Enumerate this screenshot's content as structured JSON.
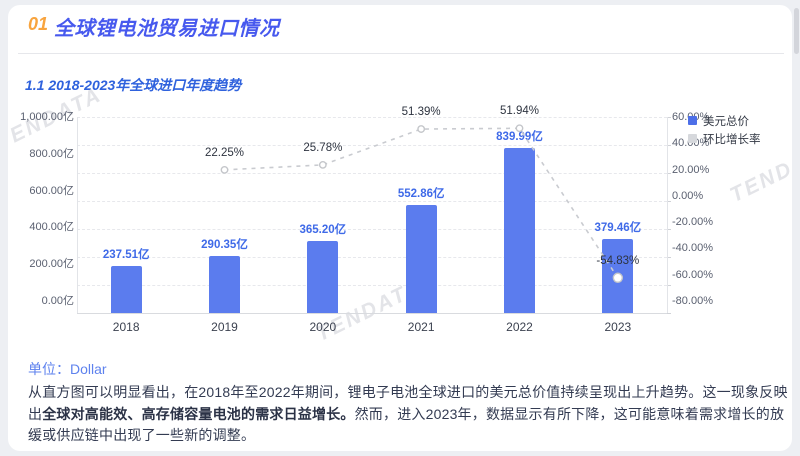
{
  "header": {
    "number": "01",
    "title": "全球锂电池贸易进口情况"
  },
  "section": {
    "subtitle": "1.1 2018-2023年全球进口年度趋势"
  },
  "watermark": {
    "text": "TENDATA"
  },
  "chart_data": {
    "type": "bar",
    "categories": [
      "2018",
      "2019",
      "2020",
      "2021",
      "2022",
      "2023"
    ],
    "series": [
      {
        "name": "美元总价",
        "type": "bar",
        "axis": "left",
        "unit": "亿",
        "color": "#5b7cee",
        "values": [
          237.51,
          290.35,
          365.2,
          552.86,
          839.99,
          379.46
        ],
        "labels": [
          "237.51亿",
          "290.35亿",
          "365.20亿",
          "552.86亿",
          "839.99亿",
          "379.46亿"
        ]
      },
      {
        "name": "环比增长率",
        "type": "line",
        "axis": "right",
        "unit": "%",
        "color": "#c9cbd0",
        "values": [
          null,
          22.25,
          25.78,
          51.39,
          51.94,
          -54.83
        ],
        "labels": [
          null,
          "22.25%",
          "25.78%",
          "51.39%",
          "51.94%",
          "-54.83%"
        ]
      }
    ],
    "left_axis": {
      "min": 0,
      "max": 1000,
      "step": 200,
      "labels": [
        "0.00亿",
        "200.00亿",
        "400.00亿",
        "600.00亿",
        "800.00亿",
        "1,000.00亿"
      ]
    },
    "right_axis": {
      "min": -80,
      "max": 60,
      "step": 20,
      "labels": [
        "60.00%",
        "40.00%",
        "20.00%",
        "0.00%",
        "-20.00%",
        "-40.00%",
        "-60.00%",
        "-80.00%"
      ]
    },
    "legend": [
      {
        "label": "美元总价",
        "color": "#4d6fe8"
      },
      {
        "label": "环比增长率",
        "color": "#d6d8dc"
      }
    ],
    "grid": true,
    "legend_position": "top-right"
  },
  "footer": {
    "unit_label": "单位：",
    "unit_value": "Dollar",
    "paragraph_before_bold": "从直方图可以明显看出，在2018年至2022年期间，锂电子电池全球进口的美元总价值持续呈现出上升趋势。这一现象反映出",
    "paragraph_bold": "全球对高能效、高存储容量电池的需求日益增长。",
    "paragraph_after_bold": "然而，进入2023年，数据显示有所下降，这可能意味着需求增长的放缓或供应链中出现了一些新的调整。"
  }
}
